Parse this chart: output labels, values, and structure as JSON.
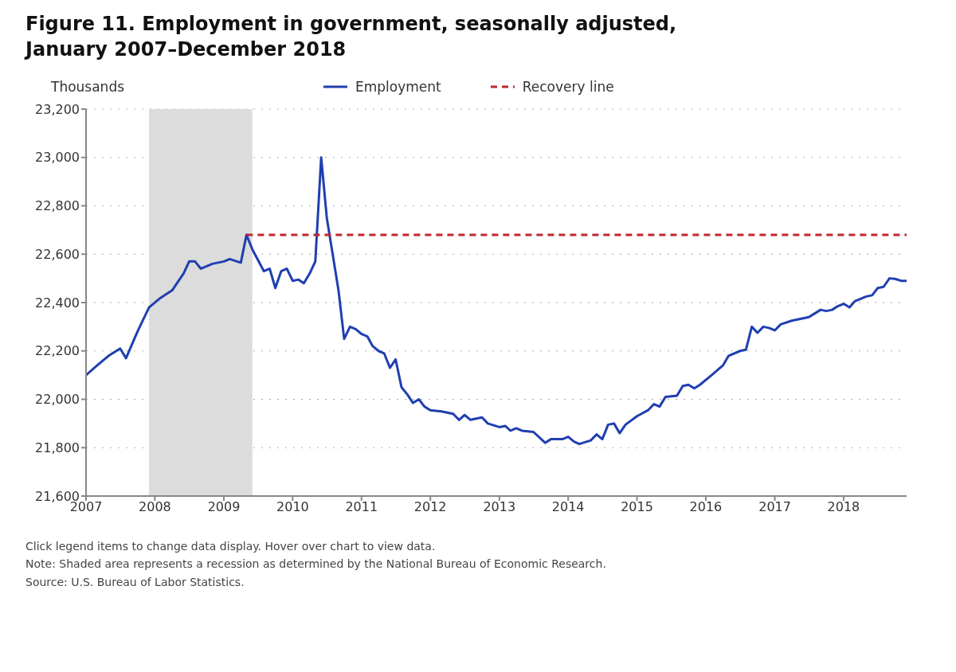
{
  "chart_data": {
    "type": "line",
    "title": "Figure 11. Employment in government, seasonally adjusted, January 2007–December 2018",
    "ylabel": "Thousands",
    "xlim": [
      "2007-01",
      "2018-12"
    ],
    "xticks": [
      "2007",
      "2008",
      "2009",
      "2010",
      "2011",
      "2012",
      "2013",
      "2014",
      "2015",
      "2016",
      "2017",
      "2018"
    ],
    "ylim": [
      21600,
      23200
    ],
    "yticks": [
      {
        "value": 21600,
        "label": "21,600"
      },
      {
        "value": 21800,
        "label": "21,800"
      },
      {
        "value": 22000,
        "label": "22,000"
      },
      {
        "value": 22200,
        "label": "22,200"
      },
      {
        "value": 22400,
        "label": "22,400"
      },
      {
        "value": 22600,
        "label": "22,600"
      },
      {
        "value": 22800,
        "label": "22,800"
      },
      {
        "value": 23000,
        "label": "23,000"
      },
      {
        "value": 23200,
        "label": "23,200"
      }
    ],
    "grid": "y",
    "legend": "top",
    "marker": "none",
    "bands": [
      {
        "axis": "x",
        "from": "2007-12",
        "to": "2009-06",
        "color": "#dcdcdc"
      }
    ],
    "series": [
      {
        "name": "Employment",
        "color": "#1f3fb0",
        "line_style": "solid",
        "x": [
          "2007-01",
          "2007-03",
          "2007-05",
          "2007-07",
          "2007-08",
          "2007-10",
          "2007-12",
          "2008-02",
          "2008-04",
          "2008-06",
          "2008-07",
          "2008-08",
          "2008-09",
          "2008-11",
          "2009-01",
          "2009-02",
          "2009-04",
          "2009-05",
          "2009-06",
          "2009-08",
          "2009-09",
          "2009-10",
          "2009-11",
          "2009-12",
          "2010-01",
          "2010-02",
          "2010-03",
          "2010-04",
          "2010-05",
          "2010-06",
          "2010-07",
          "2010-09",
          "2010-10",
          "2010-11",
          "2010-12",
          "2011-01",
          "2011-02",
          "2011-03",
          "2011-04",
          "2011-05",
          "2011-06",
          "2011-07",
          "2011-08",
          "2011-09",
          "2011-10",
          "2011-11",
          "2011-12",
          "2012-01",
          "2012-03",
          "2012-05",
          "2012-06",
          "2012-07",
          "2012-08",
          "2012-10",
          "2012-11",
          "2013-01",
          "2013-02",
          "2013-03",
          "2013-04",
          "2013-05",
          "2013-07",
          "2013-09",
          "2013-10",
          "2013-12",
          "2014-01",
          "2014-02",
          "2014-03",
          "2014-05",
          "2014-06",
          "2014-07",
          "2014-08",
          "2014-09",
          "2014-10",
          "2014-11",
          "2015-01",
          "2015-03",
          "2015-04",
          "2015-05",
          "2015-06",
          "2015-08",
          "2015-09",
          "2015-10",
          "2015-11",
          "2015-12",
          "2016-02",
          "2016-04",
          "2016-05",
          "2016-07",
          "2016-08",
          "2016-09",
          "2016-10",
          "2016-11",
          "2016-12",
          "2017-01",
          "2017-02",
          "2017-04",
          "2017-06",
          "2017-07",
          "2017-09",
          "2017-10",
          "2017-11",
          "2017-12",
          "2018-01",
          "2018-02",
          "2018-03",
          "2018-05",
          "2018-06",
          "2018-07",
          "2018-08",
          "2018-09",
          "2018-10",
          "2018-11",
          "2018-12"
        ],
        "values": [
          22100,
          22140,
          22180,
          22210,
          22170,
          22280,
          22380,
          22420,
          22450,
          22520,
          22570,
          22570,
          22540,
          22560,
          22570,
          22580,
          22565,
          22680,
          22620,
          22530,
          22540,
          22460,
          22530,
          22540,
          22490,
          22495,
          22480,
          22520,
          22570,
          23000,
          22750,
          22450,
          22250,
          22300,
          22290,
          22270,
          22260,
          22220,
          22200,
          22190,
          22130,
          22165,
          22050,
          22020,
          21985,
          22000,
          21970,
          21955,
          21950,
          21940,
          21915,
          21935,
          21915,
          21925,
          21900,
          21885,
          21890,
          21870,
          21880,
          21870,
          21865,
          21820,
          21835,
          21835,
          21845,
          21825,
          21815,
          21830,
          21855,
          21835,
          21895,
          21900,
          21860,
          21895,
          21930,
          21955,
          21980,
          21970,
          22010,
          22015,
          22055,
          22060,
          22045,
          22060,
          22100,
          22140,
          22180,
          22200,
          22205,
          22300,
          22275,
          22300,
          22295,
          22285,
          22310,
          22325,
          22335,
          22340,
          22370,
          22365,
          22370,
          22385,
          22395,
          22380,
          22405,
          22425,
          22430,
          22460,
          22465,
          22500,
          22498,
          22490,
          22490
        ]
      },
      {
        "name": "Recovery line",
        "color": "#c0272d",
        "line_style": "dashed",
        "x": [
          "2009-05",
          "2018-12"
        ],
        "values": [
          22680,
          22680
        ]
      }
    ],
    "annotations": [
      "Click legend items to change data display. Hover over chart to view data.",
      "Note: Shaded area represents a recession as determined by the National Bureau of Economic Research.",
      "Source: U.S. Bureau of Labor Statistics."
    ]
  }
}
